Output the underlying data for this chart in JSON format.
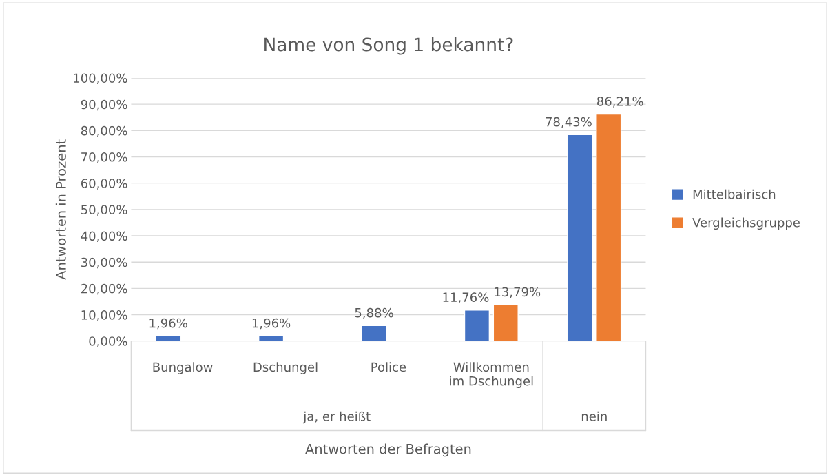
{
  "chart_data": {
    "type": "bar",
    "title": "Name von Song 1 bekannt?",
    "xlabel": "Antworten der Befragten",
    "ylabel": "Antworten in Prozent",
    "categories": [
      "Bungalow",
      "Dschungel",
      "Police",
      "Willkommen\nim Dschungel",
      null
    ],
    "annotations": [
      "ja, er heißt",
      "nein"
    ],
    "series": [
      {
        "name": "Mittelbairisch",
        "color": "#4472c4",
        "values": [
          1.96,
          1.96,
          5.88,
          11.76,
          78.43
        ],
        "value_labels": [
          "1,96%",
          "1,96%",
          "5,88%",
          "11,76%",
          "78,43%"
        ]
      },
      {
        "name": "Vergleichsgruppe",
        "color": "#ed7d31",
        "values": [
          null,
          null,
          null,
          13.79,
          86.21
        ],
        "value_labels": [
          null,
          null,
          null,
          "13,79%",
          "86,21%"
        ]
      }
    ],
    "ylim": [
      0,
      100
    ],
    "yticks": [
      {
        "value": 0,
        "label": "0,00%"
      },
      {
        "value": 10,
        "label": "10,00%"
      },
      {
        "value": 20,
        "label": "20,00%"
      },
      {
        "value": 30,
        "label": "30,00%"
      },
      {
        "value": 40,
        "label": "40,00%"
      },
      {
        "value": 50,
        "label": "50,00%"
      },
      {
        "value": 60,
        "label": "60,00%"
      },
      {
        "value": 70,
        "label": "70,00%"
      },
      {
        "value": 80,
        "label": "80,00%"
      },
      {
        "value": 90,
        "label": "90,00%"
      },
      {
        "value": 100,
        "label": "100,00%"
      }
    ],
    "grid": "y",
    "legend": "right"
  }
}
